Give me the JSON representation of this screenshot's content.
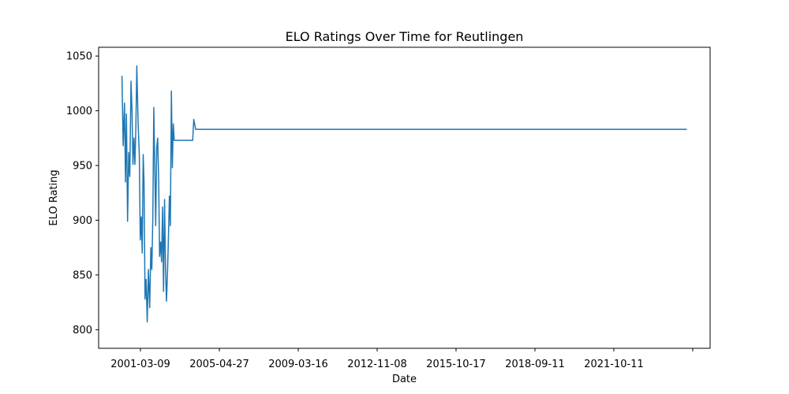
{
  "chart_data": {
    "type": "line",
    "title": "ELO Ratings Over Time for Reutlingen",
    "xlabel": "Date",
    "ylabel": "ELO Rating",
    "grid": false,
    "legend": "none",
    "line_color": "#1f77b4",
    "x_ticks": [
      "2001-03-09",
      "2005-04-27",
      "2009-03-16",
      "2012-11-08",
      "2015-10-17",
      "2018-09-11",
      "2021-10-11",
      ""
    ],
    "y_ticks": [
      800,
      850,
      900,
      950,
      1000,
      1050
    ],
    "ylim": [
      783,
      1058
    ],
    "xlim": [
      "1999-05-01",
      "2025-08-01"
    ],
    "series": [
      {
        "x": [
          "2000-05-01",
          "2000-05-20",
          "2000-06-10",
          "2000-06-25",
          "2000-07-10",
          "2000-07-28",
          "2000-08-15",
          "2000-09-01",
          "2000-09-20",
          "2000-10-05",
          "2000-10-20",
          "2000-11-05",
          "2000-11-20",
          "2000-12-05",
          "2000-12-20",
          "2001-01-10",
          "2001-01-28",
          "2001-02-12",
          "2001-02-28",
          "2001-03-15",
          "2001-03-30",
          "2001-04-12",
          "2001-04-28",
          "2001-05-15",
          "2001-06-01",
          "2001-06-20",
          "2001-07-10",
          "2001-07-28",
          "2001-08-12",
          "2001-08-28",
          "2001-09-12",
          "2001-09-28",
          "2001-10-12",
          "2001-10-28",
          "2001-11-12",
          "2001-11-28",
          "2001-12-12",
          "2001-12-28",
          "2002-01-12",
          "2002-01-28",
          "2002-02-12",
          "2002-02-28",
          "2002-03-15",
          "2002-03-30",
          "2002-04-15",
          "2002-04-30",
          "2002-05-15",
          "2002-05-30",
          "2002-06-15",
          "2002-06-30",
          "2002-07-15",
          "2002-07-30",
          "2002-08-15",
          "2002-08-30",
          "2002-09-15",
          "2002-09-30",
          "2002-10-15",
          "2002-10-30",
          "2002-11-15",
          "2002-11-30",
          "2002-12-15",
          "2002-12-30",
          "2003-01-15",
          "2003-01-30",
          "2003-02-15",
          "2003-02-28",
          "2003-03-15",
          "2003-03-30",
          "2003-04-15",
          "2003-04-30",
          "2003-05-15",
          "2003-06-01",
          "2003-07-01",
          "2003-07-20",
          "2003-08-10",
          "2024-08-01"
        ],
        "values": [
          1032,
          968,
          1007,
          935,
          997,
          899,
          962,
          940,
          1027,
          1001,
          951,
          975,
          951,
          985,
          1041,
          987,
          960,
          882,
          903,
          870,
          960,
          935,
          828,
          846,
          807,
          855,
          820,
          875,
          855,
          902,
          1003,
          948,
          895,
          967,
          975,
          935,
          867,
          880,
          862,
          912,
          835,
          919,
          856,
          826,
          852,
          885,
          922,
          895,
          1018,
          948,
          988,
          973,
          973,
          973,
          973,
          973,
          973,
          973,
          973,
          973,
          973,
          973,
          973,
          973,
          973,
          973,
          973,
          973,
          973,
          973,
          973,
          992,
          983,
          983,
          983,
          983
        ]
      }
    ]
  }
}
